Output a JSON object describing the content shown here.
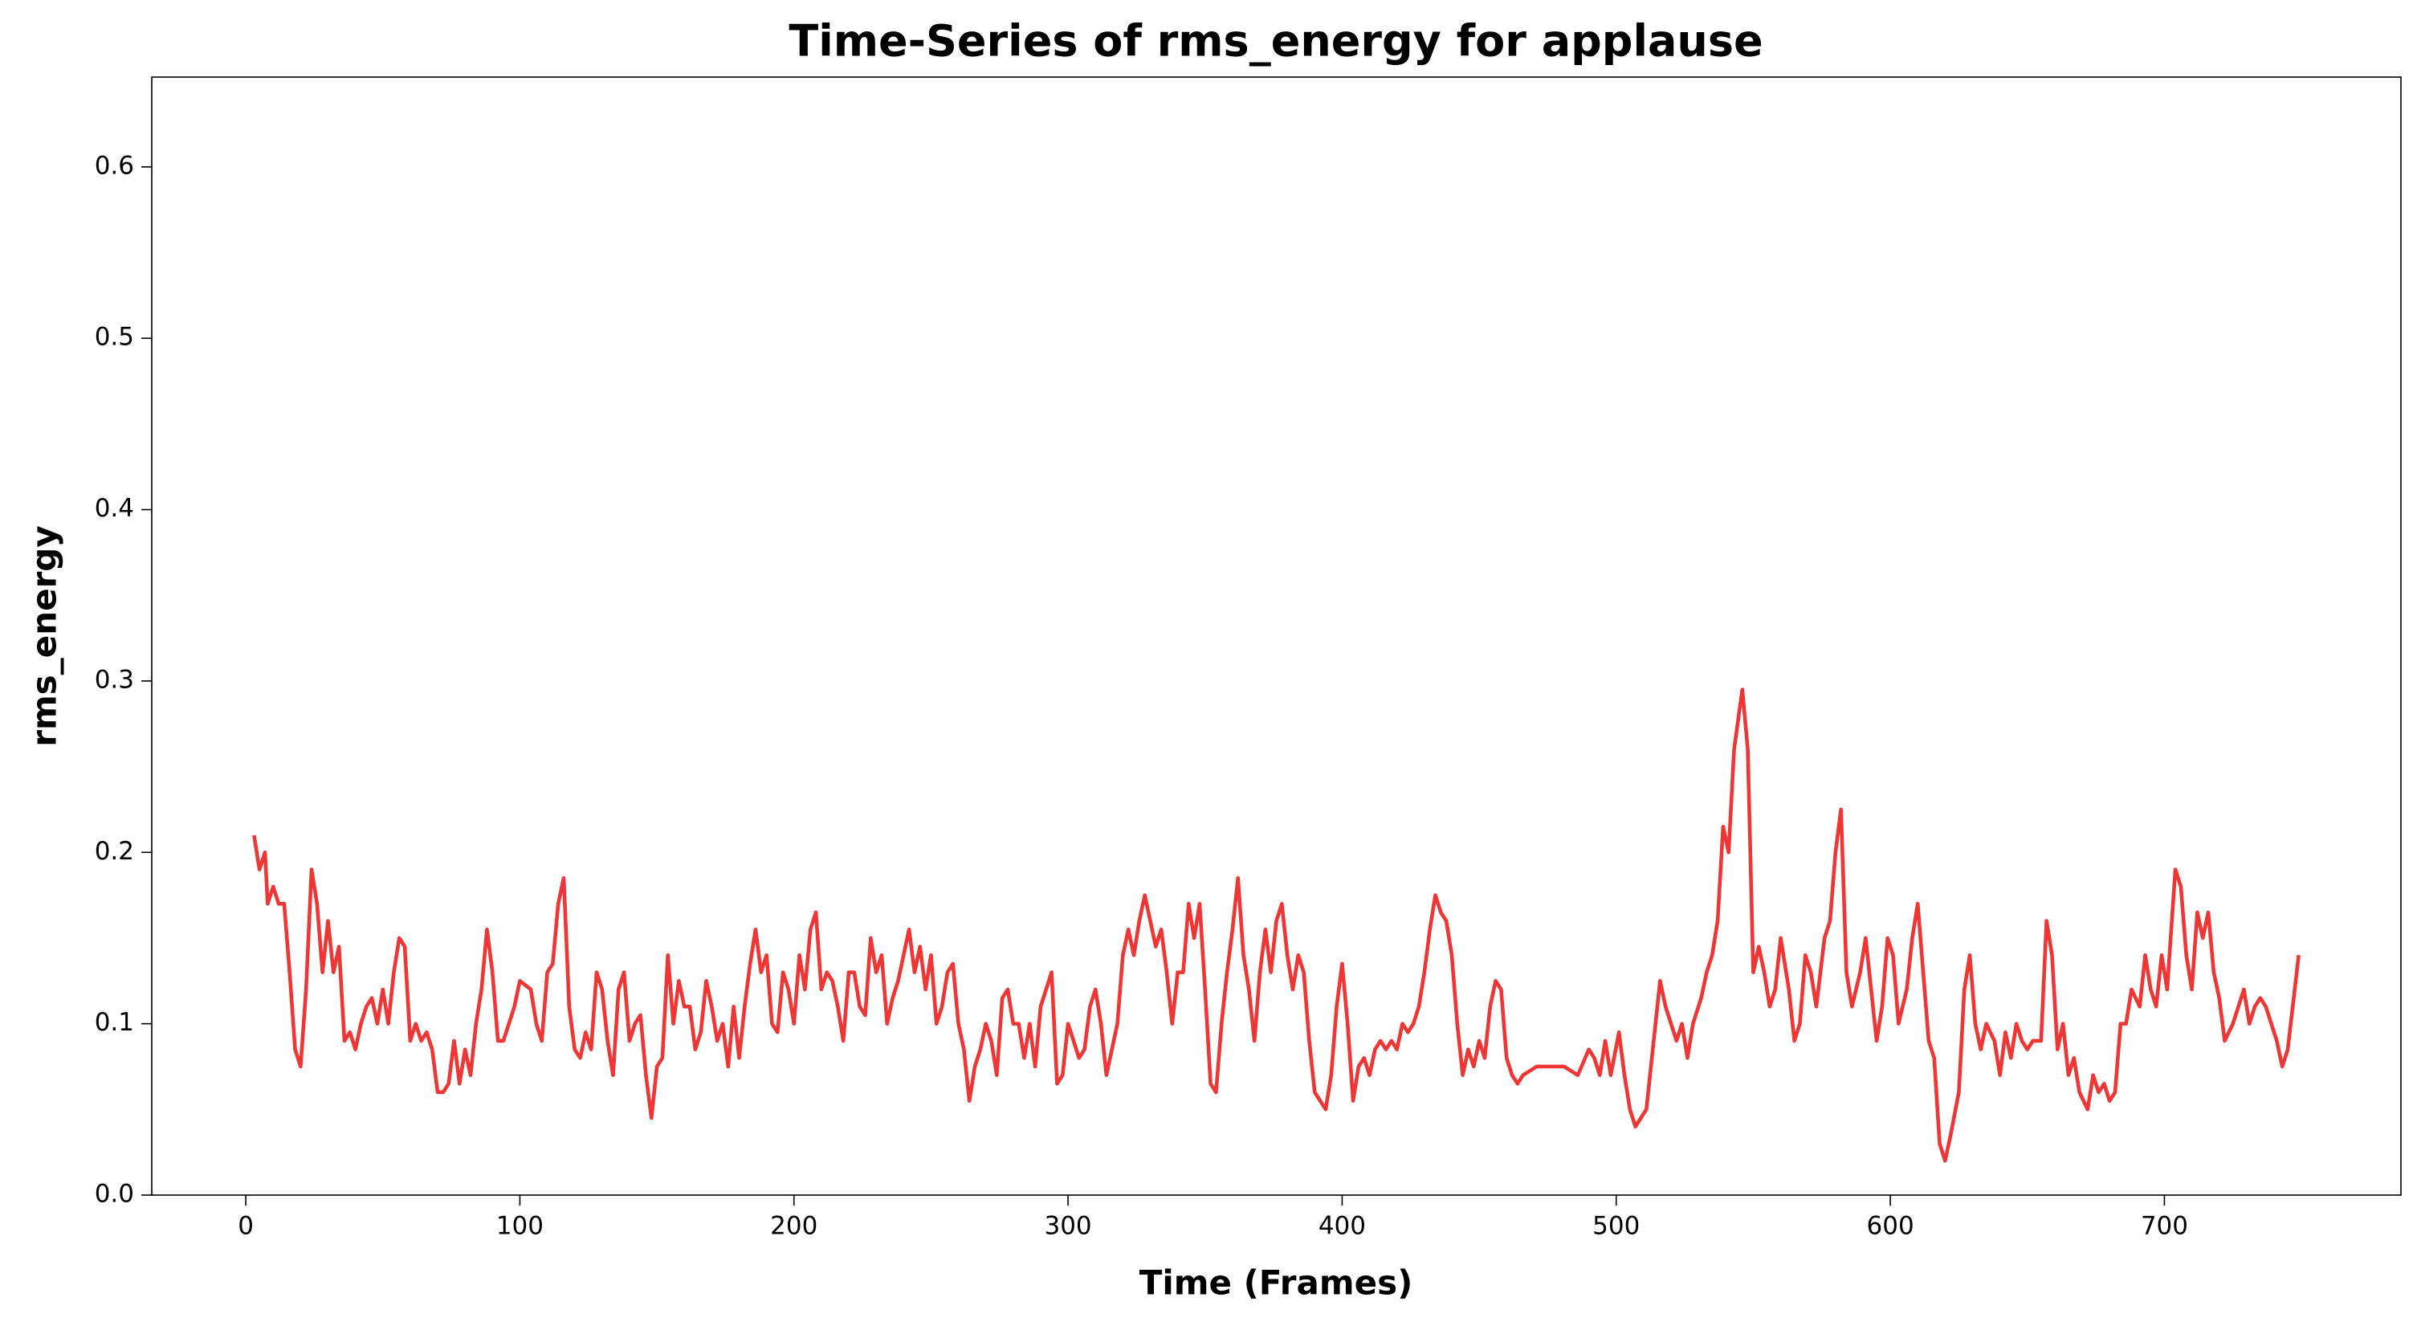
{
  "chart_data": {
    "type": "line",
    "title": "Time-Series of rms_energy for applause",
    "x_label": "Time (Frames)",
    "y_label": "rms_energy",
    "color": "#f03535",
    "xlim": [
      -34.3,
      786.3
    ],
    "ylim": [
      0,
      0.6524
    ],
    "xticks": [
      0,
      100,
      200,
      300,
      400,
      500,
      600,
      700
    ],
    "yticks": [
      0.0,
      0.1,
      0.2,
      0.3,
      0.4,
      0.5,
      0.6
    ],
    "x": [
      3,
      5,
      7,
      8,
      10,
      12,
      14,
      16,
      18,
      20,
      22,
      24,
      26,
      28,
      30,
      32,
      34,
      36,
      38,
      40,
      42,
      44,
      46,
      48,
      50,
      52,
      54,
      56,
      58,
      60,
      62,
      64,
      66,
      68,
      70,
      72,
      74,
      76,
      78,
      80,
      82,
      84,
      86,
      88,
      90,
      92,
      94,
      96,
      98,
      100,
      104,
      106,
      108,
      110,
      112,
      114,
      116,
      118,
      120,
      122,
      124,
      126,
      128,
      130,
      132,
      134,
      136,
      138,
      140,
      142,
      144,
      146,
      148,
      150,
      152,
      154,
      156,
      158,
      160,
      162,
      164,
      166,
      168,
      170,
      172,
      174,
      176,
      178,
      180,
      182,
      184,
      186,
      188,
      190,
      192,
      194,
      196,
      198,
      200,
      202,
      204,
      206,
      208,
      210,
      212,
      214,
      216,
      218,
      220,
      222,
      224,
      226,
      228,
      230,
      232,
      234,
      236,
      238,
      240,
      242,
      244,
      246,
      248,
      250,
      252,
      254,
      256,
      258,
      260,
      262,
      264,
      266,
      268,
      270,
      272,
      274,
      276,
      278,
      280,
      282,
      284,
      286,
      288,
      290,
      292,
      294,
      296,
      298,
      300,
      302,
      304,
      306,
      308,
      310,
      312,
      314,
      316,
      318,
      320,
      322,
      324,
      326,
      328,
      330,
      332,
      334,
      336,
      338,
      340,
      342,
      344,
      346,
      348,
      350,
      352,
      354,
      356,
      358,
      360,
      362,
      364,
      366,
      368,
      370,
      372,
      374,
      376,
      378,
      380,
      382,
      384,
      386,
      388,
      390,
      392,
      394,
      396,
      398,
      400,
      402,
      404,
      406,
      408,
      410,
      412,
      414,
      416,
      418,
      420,
      422,
      424,
      426,
      428,
      430,
      432,
      434,
      436,
      438,
      440,
      442,
      444,
      446,
      448,
      450,
      452,
      454,
      456,
      458,
      460,
      462,
      464,
      466,
      471,
      476,
      481,
      486,
      490,
      492,
      494,
      496,
      498,
      501,
      503,
      505,
      507,
      509,
      511,
      513,
      516,
      518,
      520,
      522,
      524,
      526,
      528,
      531,
      533,
      535,
      537,
      539,
      541,
      543,
      546,
      548,
      550,
      552,
      554,
      556,
      558,
      560,
      563,
      565,
      567,
      569,
      571,
      573,
      576,
      578,
      580,
      582,
      584,
      586,
      589,
      591,
      593,
      595,
      597,
      599,
      601,
      603,
      606,
      608,
      610,
      612,
      614,
      616,
      618,
      620,
      622,
      625,
      627,
      629,
      631,
      633,
      635,
      638,
      640,
      642,
      644,
      646,
      648,
      650,
      652,
      655,
      657,
      659,
      661,
      663,
      665,
      667,
      669,
      672,
      674,
      676,
      678,
      680,
      682,
      684,
      686,
      688,
      691,
      693,
      695,
      697,
      699,
      701,
      704,
      706,
      708,
      710,
      712,
      714,
      716,
      718,
      720,
      722,
      725,
      727,
      729,
      731,
      733,
      735,
      737,
      739,
      741,
      743,
      745,
      749
    ],
    "values": [
      0.21,
      0.19,
      0.2,
      0.17,
      0.18,
      0.17,
      0.17,
      0.13,
      0.085,
      0.075,
      0.12,
      0.19,
      0.17,
      0.13,
      0.16,
      0.13,
      0.145,
      0.09,
      0.095,
      0.085,
      0.1,
      0.11,
      0.115,
      0.1,
      0.12,
      0.1,
      0.13,
      0.15,
      0.145,
      0.09,
      0.1,
      0.09,
      0.095,
      0.085,
      0.06,
      0.06,
      0.065,
      0.09,
      0.065,
      0.085,
      0.07,
      0.1,
      0.12,
      0.155,
      0.13,
      0.09,
      0.09,
      0.1,
      0.11,
      0.125,
      0.12,
      0.1,
      0.09,
      0.13,
      0.135,
      0.17,
      0.185,
      0.11,
      0.085,
      0.08,
      0.095,
      0.085,
      0.13,
      0.12,
      0.09,
      0.07,
      0.12,
      0.13,
      0.09,
      0.1,
      0.105,
      0.07,
      0.045,
      0.075,
      0.08,
      0.14,
      0.1,
      0.125,
      0.11,
      0.11,
      0.085,
      0.095,
      0.125,
      0.11,
      0.09,
      0.1,
      0.075,
      0.11,
      0.08,
      0.11,
      0.135,
      0.155,
      0.13,
      0.14,
      0.1,
      0.095,
      0.13,
      0.12,
      0.1,
      0.14,
      0.12,
      0.155,
      0.165,
      0.12,
      0.13,
      0.125,
      0.11,
      0.09,
      0.13,
      0.13,
      0.11,
      0.105,
      0.15,
      0.13,
      0.14,
      0.1,
      0.115,
      0.125,
      0.14,
      0.155,
      0.13,
      0.145,
      0.12,
      0.14,
      0.1,
      0.11,
      0.13,
      0.135,
      0.1,
      0.085,
      0.055,
      0.075,
      0.085,
      0.1,
      0.09,
      0.07,
      0.115,
      0.12,
      0.1,
      0.1,
      0.08,
      0.1,
      0.075,
      0.11,
      0.12,
      0.13,
      0.065,
      0.07,
      0.1,
      0.09,
      0.08,
      0.085,
      0.11,
      0.12,
      0.1,
      0.07,
      0.085,
      0.1,
      0.14,
      0.155,
      0.14,
      0.16,
      0.175,
      0.16,
      0.145,
      0.155,
      0.13,
      0.1,
      0.13,
      0.13,
      0.17,
      0.15,
      0.17,
      0.12,
      0.065,
      0.06,
      0.1,
      0.13,
      0.155,
      0.185,
      0.14,
      0.12,
      0.09,
      0.13,
      0.155,
      0.13,
      0.16,
      0.17,
      0.14,
      0.12,
      0.14,
      0.13,
      0.09,
      0.06,
      0.055,
      0.05,
      0.07,
      0.11,
      0.135,
      0.1,
      0.055,
      0.075,
      0.08,
      0.07,
      0.085,
      0.09,
      0.085,
      0.09,
      0.085,
      0.1,
      0.095,
      0.1,
      0.11,
      0.13,
      0.155,
      0.175,
      0.165,
      0.16,
      0.14,
      0.1,
      0.07,
      0.085,
      0.075,
      0.09,
      0.08,
      0.11,
      0.125,
      0.12,
      0.08,
      0.07,
      0.065,
      0.07,
      0.075,
      0.075,
      0.075,
      0.07,
      0.085,
      0.08,
      0.07,
      0.09,
      0.07,
      0.095,
      0.07,
      0.05,
      0.04,
      0.045,
      0.05,
      0.08,
      0.125,
      0.11,
      0.1,
      0.09,
      0.1,
      0.08,
      0.1,
      0.115,
      0.13,
      0.14,
      0.16,
      0.215,
      0.2,
      0.26,
      0.295,
      0.26,
      0.13,
      0.145,
      0.13,
      0.11,
      0.12,
      0.15,
      0.12,
      0.09,
      0.1,
      0.14,
      0.13,
      0.11,
      0.15,
      0.16,
      0.2,
      0.225,
      0.13,
      0.11,
      0.13,
      0.15,
      0.12,
      0.09,
      0.11,
      0.15,
      0.14,
      0.1,
      0.12,
      0.15,
      0.17,
      0.13,
      0.09,
      0.08,
      0.03,
      0.02,
      0.035,
      0.06,
      0.12,
      0.14,
      0.1,
      0.085,
      0.1,
      0.09,
      0.07,
      0.095,
      0.08,
      0.1,
      0.09,
      0.085,
      0.09,
      0.09,
      0.16,
      0.14,
      0.085,
      0.1,
      0.07,
      0.08,
      0.06,
      0.05,
      0.07,
      0.06,
      0.065,
      0.055,
      0.06,
      0.1,
      0.1,
      0.12,
      0.11,
      0.14,
      0.12,
      0.11,
      0.14,
      0.12,
      0.19,
      0.18,
      0.14,
      0.12,
      0.165,
      0.15,
      0.165,
      0.13,
      0.115,
      0.09,
      0.1,
      0.11,
      0.12,
      0.1,
      0.11,
      0.115,
      0.11,
      0.1,
      0.09,
      0.075,
      0.085,
      0.14
    ]
  }
}
